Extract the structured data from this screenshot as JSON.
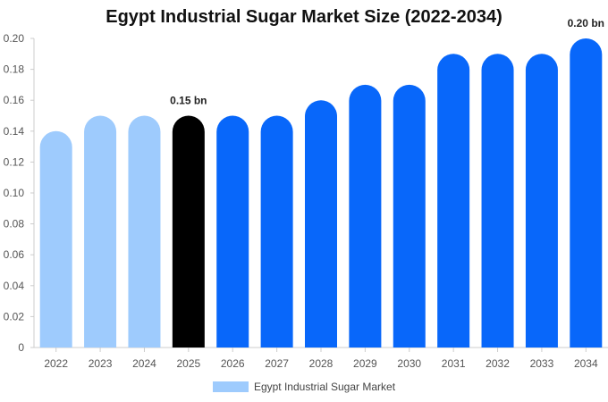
{
  "chart_data": {
    "type": "bar",
    "title": "Egypt Industrial Sugar Market Size (2022-2034)",
    "categories": [
      "2022",
      "2023",
      "2024",
      "2025",
      "2026",
      "2027",
      "2028",
      "2029",
      "2030",
      "2031",
      "2032",
      "2033",
      "2034"
    ],
    "values": [
      0.14,
      0.15,
      0.15,
      0.15,
      0.15,
      0.15,
      0.16,
      0.17,
      0.17,
      0.19,
      0.19,
      0.19,
      0.2
    ],
    "bar_colors": [
      "#9ecbfd",
      "#9ecbfd",
      "#9ecbfd",
      "#000000",
      "#0867fa",
      "#0867fa",
      "#0867fa",
      "#0867fa",
      "#0867fa",
      "#0867fa",
      "#0867fa",
      "#0867fa",
      "#0867fa"
    ],
    "ylim": [
      0,
      0.2
    ],
    "yticks": [
      "0",
      "0.02",
      "0.04",
      "0.06",
      "0.08",
      "0.10",
      "0.12",
      "0.14",
      "0.16",
      "0.18",
      "0.20"
    ],
    "data_labels": [
      {
        "index": 3,
        "text": "0.15 bn"
      },
      {
        "index": 12,
        "text": "0.20 bn"
      }
    ],
    "legend": {
      "label": "Egypt Industrial Sugar Market",
      "color": "#9ecbfd",
      "position": "bottom-center"
    },
    "xlabel": "",
    "ylabel": ""
  }
}
